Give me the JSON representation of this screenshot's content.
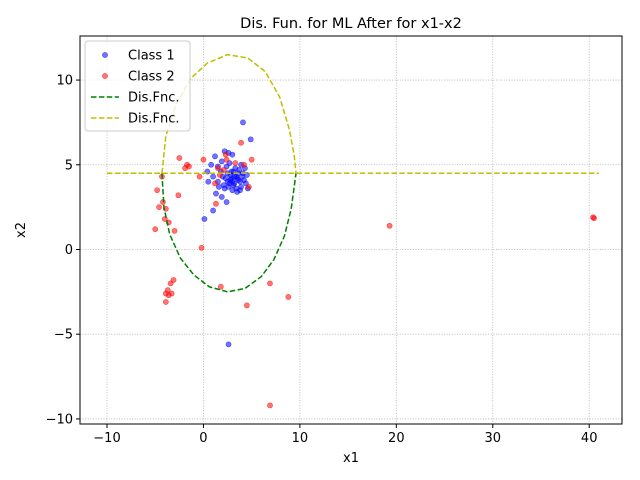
{
  "chart_data": {
    "type": "scatter",
    "title": "Dis. Fun. for ML After for x1-x2",
    "xlabel": "x1",
    "ylabel": "x2",
    "xlim": [
      -12.8,
      43.4
    ],
    "ylim": [
      -10.3,
      12.6
    ],
    "xticks": [
      -10,
      0,
      10,
      20,
      30,
      40
    ],
    "yticks": [
      -10,
      -5,
      0,
      5,
      10
    ],
    "xtick_labels": [
      "−10",
      "0",
      "10",
      "20",
      "30",
      "40"
    ],
    "ytick_labels": [
      "−10",
      "−5",
      "0",
      "5",
      "10"
    ],
    "grid": true,
    "legend_position": "upper-left",
    "series": [
      {
        "name": "Class 1",
        "kind": "points",
        "color": "#0000ff",
        "points": [
          [
            4.1,
            7.5
          ],
          [
            4.9,
            6.5
          ],
          [
            3.0,
            5.6
          ],
          [
            2.2,
            5.8
          ],
          [
            2.6,
            5.7
          ],
          [
            1.2,
            5.5
          ],
          [
            1.9,
            5.2
          ],
          [
            0.8,
            5.0
          ],
          [
            0.4,
            4.6
          ],
          [
            1.0,
            4.3
          ],
          [
            1.5,
            4.0
          ],
          [
            0.5,
            4.0
          ],
          [
            1.3,
            3.3
          ],
          [
            1.9,
            3.1
          ],
          [
            2.4,
            2.8
          ],
          [
            1.0,
            2.3
          ],
          [
            0.1,
            1.8
          ],
          [
            2.6,
            -5.6
          ],
          [
            3.0,
            4.0
          ],
          [
            3.2,
            4.3
          ],
          [
            2.8,
            4.1
          ],
          [
            3.5,
            4.2
          ],
          [
            2.5,
            4.5
          ],
          [
            3.1,
            3.8
          ],
          [
            3.8,
            4.0
          ],
          [
            2.9,
            4.6
          ],
          [
            3.4,
            3.6
          ],
          [
            2.7,
            3.9
          ],
          [
            3.6,
            4.5
          ],
          [
            2.3,
            4.2
          ],
          [
            4.0,
            4.3
          ],
          [
            3.3,
            4.8
          ],
          [
            2.6,
            3.7
          ],
          [
            3.9,
            3.7
          ],
          [
            4.2,
            4.1
          ],
          [
            2.0,
            4.3
          ],
          [
            3.0,
            3.5
          ],
          [
            3.7,
            4.7
          ],
          [
            2.4,
            4.9
          ],
          [
            4.4,
            3.9
          ],
          [
            2.1,
            3.8
          ],
          [
            3.5,
            3.4
          ],
          [
            4.5,
            4.4
          ],
          [
            1.8,
            4.6
          ],
          [
            2.9,
            4.2
          ],
          [
            3.2,
            3.9
          ],
          [
            3.6,
            4.1
          ],
          [
            2.8,
            4.4
          ],
          [
            3.4,
            4.3
          ],
          [
            3.1,
            4.6
          ],
          [
            2.5,
            4.0
          ],
          [
            4.1,
            4.5
          ],
          [
            3.8,
            3.5
          ],
          [
            2.2,
            3.6
          ],
          [
            4.3,
            4.8
          ],
          [
            1.6,
            3.7
          ],
          [
            2.7,
            5.1
          ],
          [
            3.9,
            5.0
          ],
          [
            4.6,
            3.6
          ],
          [
            1.5,
            4.9
          ]
        ]
      },
      {
        "name": "Class 2",
        "kind": "points",
        "color": "#ff0000",
        "points": [
          [
            40.4,
            1.9
          ],
          [
            40.5,
            1.85
          ],
          [
            19.3,
            1.4
          ],
          [
            8.8,
            -2.8
          ],
          [
            6.9,
            -2.0
          ],
          [
            4.5,
            -3.3
          ],
          [
            6.9,
            -9.2
          ],
          [
            1.8,
            -2.2
          ],
          [
            -4.3,
            4.3
          ],
          [
            -4.8,
            3.5
          ],
          [
            -4.6,
            2.5
          ],
          [
            -4.2,
            2.8
          ],
          [
            -3.9,
            2.4
          ],
          [
            -4.0,
            1.8
          ],
          [
            -3.6,
            1.6
          ],
          [
            -5.0,
            1.2
          ],
          [
            -3.0,
            1.1
          ],
          [
            -3.7,
            -2.4
          ],
          [
            -3.6,
            -2.7
          ],
          [
            -3.9,
            -2.6
          ],
          [
            -3.3,
            -2.6
          ],
          [
            -3.9,
            -3.1
          ],
          [
            -3.1,
            -1.8
          ],
          [
            -3.4,
            -2.0
          ],
          [
            -2.5,
            5.4
          ],
          [
            -1.9,
            4.8
          ],
          [
            -1.5,
            4.9
          ],
          [
            -1.7,
            5.0
          ],
          [
            -2.6,
            3.2
          ],
          [
            -0.2,
            0.1
          ],
          [
            0.0,
            5.3
          ],
          [
            -0.4,
            4.3
          ],
          [
            2.3,
            5.6
          ],
          [
            1.5,
            4.8
          ],
          [
            3.9,
            6.3
          ],
          [
            4.2,
            5.0
          ],
          [
            5.0,
            5.3
          ],
          [
            4.7,
            3.7
          ],
          [
            1.2,
            3.9
          ],
          [
            2.1,
            4.7
          ],
          [
            1.7,
            4.4
          ],
          [
            3.3,
            5.1
          ],
          [
            2.4,
            5.3
          ],
          [
            1.3,
            2.7
          ]
        ]
      },
      {
        "name": "Dis.Fnc.",
        "kind": "dashed-line",
        "color": "#008000",
        "segments": [
          [
            [
              -10,
              4.5
            ],
            [
              -4.3,
              4.5
            ]
          ],
          [
            [
              -4.3,
              4.5
            ],
            [
              -4.1,
              2.5
            ],
            [
              -3.5,
              0.9
            ],
            [
              -2.4,
              -0.5
            ],
            [
              -1.0,
              -1.5
            ],
            [
              0.6,
              -2.2
            ],
            [
              2.5,
              -2.5
            ],
            [
              4.3,
              -2.3
            ],
            [
              6.0,
              -1.6
            ],
            [
              7.3,
              -0.6
            ],
            [
              8.4,
              0.8
            ],
            [
              9.1,
              2.4
            ],
            [
              9.6,
              4.5
            ]
          ]
        ]
      },
      {
        "name": "Dis.Fnc.",
        "kind": "dashed-line",
        "color": "#bfbf00",
        "segments": [
          [
            [
              -10,
              4.5
            ],
            [
              41,
              4.5
            ]
          ],
          [
            [
              -4.3,
              4.5
            ],
            [
              -3.9,
              6.7
            ],
            [
              -2.8,
              8.6
            ],
            [
              -1.3,
              10.1
            ],
            [
              0.4,
              11.0
            ],
            [
              2.5,
              11.5
            ],
            [
              4.6,
              11.3
            ],
            [
              6.4,
              10.5
            ],
            [
              7.9,
              9.0
            ],
            [
              8.9,
              7.1
            ],
            [
              9.4,
              5.6
            ],
            [
              9.6,
              4.5
            ]
          ]
        ]
      }
    ]
  }
}
